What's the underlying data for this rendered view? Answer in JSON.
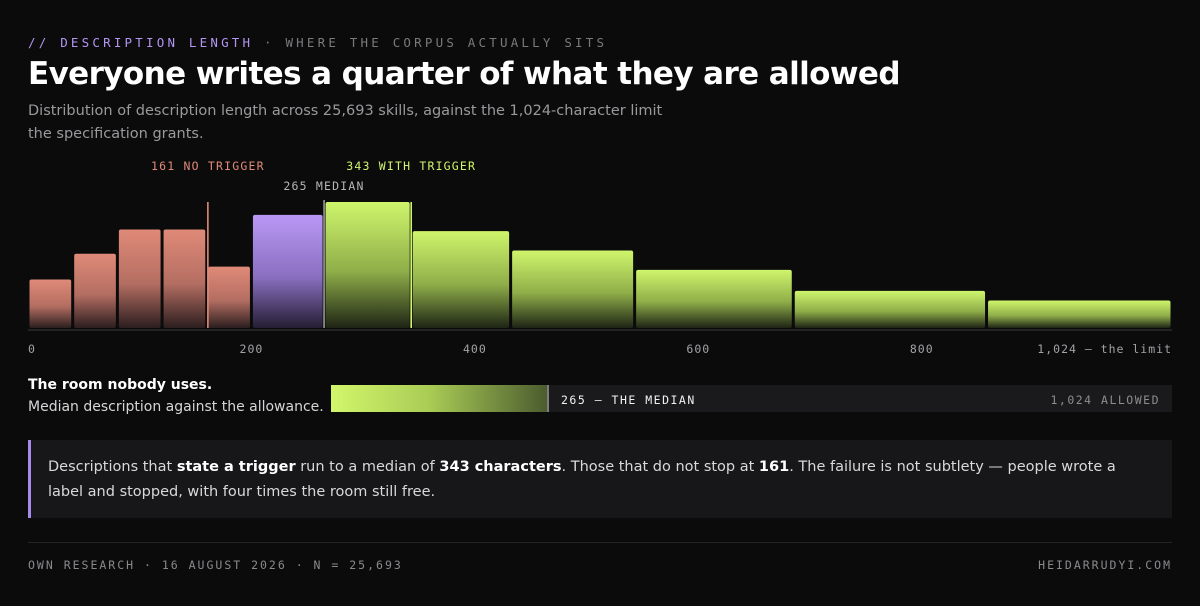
{
  "header": {
    "eyebrow_slash": "//",
    "eyebrow_section": "DESCRIPTION LENGTH",
    "eyebrow_dot": "·",
    "eyebrow_sub": "WHERE THE CORPUS ACTUALLY SITS",
    "title": "Everyone writes a quarter of what they are allowed",
    "subtitle": "Distribution of description length across 25,693 skills, against the 1,024-character limit the specification grants."
  },
  "colors": {
    "background": "#0b0b0c",
    "no_trigger": "#e08a78",
    "median": "#b998f5",
    "with_trigger": "#cff56c",
    "eyebrow_accent": "#b394f2"
  },
  "chart_data": {
    "type": "bar",
    "x_unit": "characters",
    "xlim": [
      0,
      1024
    ],
    "x_ticks": [
      0,
      200,
      400,
      600,
      800,
      1024
    ],
    "x_tick_labels": [
      "0",
      "200",
      "400",
      "600",
      "800",
      "1,024 — the limit"
    ],
    "bins": [
      {
        "from": 0,
        "to": 40,
        "value": 30,
        "group": "no-trigger"
      },
      {
        "from": 40,
        "to": 80,
        "value": 46,
        "group": "no-trigger"
      },
      {
        "from": 80,
        "to": 120,
        "value": 61,
        "group": "no-trigger"
      },
      {
        "from": 120,
        "to": 160,
        "value": 61,
        "group": "no-trigger"
      },
      {
        "from": 160,
        "to": 200,
        "value": 38,
        "group": "no-trigger"
      },
      {
        "from": 200,
        "to": 265,
        "value": 70,
        "group": "median"
      },
      {
        "from": 265,
        "to": 343,
        "value": 78,
        "group": "with-trigger"
      },
      {
        "from": 343,
        "to": 432,
        "value": 60,
        "group": "with-trigger"
      },
      {
        "from": 432,
        "to": 543,
        "value": 48,
        "group": "with-trigger"
      },
      {
        "from": 543,
        "to": 685,
        "value": 36,
        "group": "with-trigger"
      },
      {
        "from": 685,
        "to": 858,
        "value": 23,
        "group": "with-trigger"
      },
      {
        "from": 858,
        "to": 1024,
        "value": 17,
        "group": "with-trigger"
      }
    ],
    "markers": [
      {
        "x": 161,
        "label": "161 NO TRIGGER",
        "group": "no-trigger"
      },
      {
        "x": 265,
        "label": "265 MEDIAN",
        "group": "median"
      },
      {
        "x": 343,
        "label": "343 WITH TRIGGER",
        "group": "with-trigger"
      }
    ]
  },
  "room": {
    "title": "The room nobody uses.",
    "subtitle": "Median description against the allowance.",
    "median_value": 265,
    "limit_value": 1024,
    "median_label": "265 — THE MEDIAN",
    "limit_label": "1,024 ALLOWED"
  },
  "callout": {
    "t1": "Descriptions that ",
    "b1": "state a trigger",
    "t2": " run to a median of ",
    "b2": "343 characters",
    "t3": ". Those that do not stop at ",
    "b3": "161",
    "t4": ". The failure is not subtlety — people wrote a label and stopped, with four times the room still free."
  },
  "footer": {
    "left": "OWN RESEARCH · 16 AUGUST 2026 · N = 25,693",
    "right": "HEIDARRUDYI.COM"
  }
}
